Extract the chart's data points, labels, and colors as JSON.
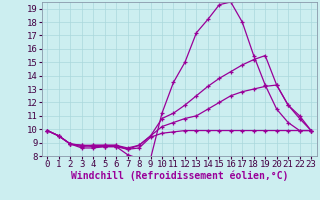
{
  "xlabel": "Windchill (Refroidissement éolien,°C)",
  "xlim": [
    -0.5,
    23.5
  ],
  "ylim": [
    8,
    19.5
  ],
  "xticks": [
    0,
    1,
    2,
    3,
    4,
    5,
    6,
    7,
    8,
    9,
    10,
    11,
    12,
    13,
    14,
    15,
    16,
    17,
    18,
    19,
    20,
    21,
    22,
    23
  ],
  "yticks": [
    8,
    9,
    10,
    11,
    12,
    13,
    14,
    15,
    16,
    17,
    18,
    19
  ],
  "bg_color": "#cceef0",
  "line_color": "#990099",
  "grid_color": "#aad8dc",
  "lines": [
    {
      "x": [
        0,
        1,
        2,
        3,
        4,
        5,
        6,
        7,
        8,
        9,
        10,
        11,
        12,
        13,
        14,
        15,
        16,
        17,
        18,
        19,
        20,
        21,
        22,
        23
      ],
      "y": [
        9.9,
        9.5,
        8.9,
        8.6,
        8.6,
        8.7,
        8.7,
        8.1,
        7.8,
        7.8,
        11.2,
        13.5,
        15.0,
        17.2,
        18.2,
        19.3,
        19.5,
        18.0,
        15.5,
        13.3,
        11.5,
        10.5,
        9.9,
        9.9
      ]
    },
    {
      "x": [
        0,
        1,
        2,
        3,
        4,
        5,
        6,
        7,
        8,
        9,
        10,
        11,
        12,
        13,
        14,
        15,
        16,
        17,
        18,
        19,
        20,
        21,
        22,
        23
      ],
      "y": [
        9.9,
        9.5,
        8.9,
        8.7,
        8.8,
        8.8,
        8.8,
        8.5,
        8.8,
        9.5,
        10.8,
        11.2,
        11.8,
        12.5,
        13.2,
        13.8,
        14.3,
        14.8,
        15.2,
        15.5,
        13.3,
        11.8,
        11.0,
        9.9
      ]
    },
    {
      "x": [
        0,
        1,
        2,
        3,
        4,
        5,
        6,
        7,
        8,
        9,
        10,
        11,
        12,
        13,
        14,
        15,
        16,
        17,
        18,
        19,
        20,
        21,
        22,
        23
      ],
      "y": [
        9.9,
        9.5,
        8.9,
        8.8,
        8.8,
        8.8,
        8.8,
        8.6,
        8.8,
        9.5,
        10.2,
        10.5,
        10.8,
        11.0,
        11.5,
        12.0,
        12.5,
        12.8,
        13.0,
        13.2,
        13.3,
        11.8,
        10.8,
        9.9
      ]
    },
    {
      "x": [
        0,
        1,
        2,
        3,
        4,
        5,
        6,
        7,
        8,
        9,
        10,
        11,
        12,
        13,
        14,
        15,
        16,
        17,
        18,
        19,
        20,
        21,
        22,
        23
      ],
      "y": [
        9.9,
        9.5,
        8.9,
        8.8,
        8.7,
        8.7,
        8.7,
        8.5,
        8.6,
        9.4,
        9.7,
        9.8,
        9.9,
        9.9,
        9.9,
        9.9,
        9.9,
        9.9,
        9.9,
        9.9,
        9.9,
        9.9,
        9.9,
        9.9
      ]
    }
  ],
  "tick_fontsize": 6.5,
  "label_fontsize": 7.0
}
